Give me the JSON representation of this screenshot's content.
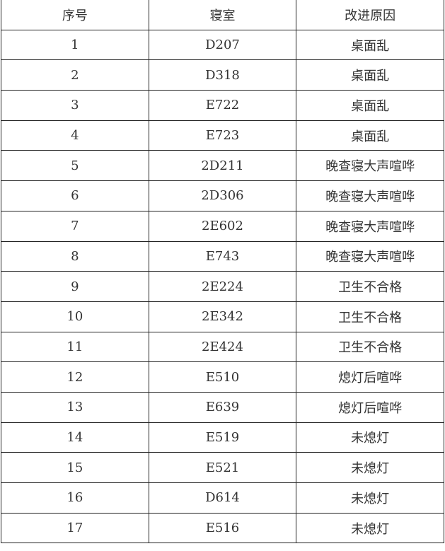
{
  "headers": [
    "序号",
    "寝室",
    "改进原因"
  ],
  "rows": [
    [
      "1",
      "D207",
      "桌面乱"
    ],
    [
      "2",
      "D318",
      "桌面乱"
    ],
    [
      "3",
      "E722",
      "桌面乱"
    ],
    [
      "4",
      "E723",
      "桌面乱"
    ],
    [
      "5",
      "2D211",
      "晚查寝大声喧哗"
    ],
    [
      "6",
      "2D306",
      "晚查寝大声喧哗"
    ],
    [
      "7",
      "2E602",
      "晚查寝大声喧哗"
    ],
    [
      "8",
      "E743",
      "晚查寝大声喧哗"
    ],
    [
      "9",
      "2E224",
      "卫生不合格"
    ],
    [
      "10",
      "2E342",
      "卫生不合格"
    ],
    [
      "11",
      "2E424",
      "卫生不合格"
    ],
    [
      "12",
      "E510",
      "熄灯后喧哗"
    ],
    [
      "13",
      "E639",
      "熄灯后喧哗"
    ],
    [
      "14",
      "E519",
      "未熄灯"
    ],
    [
      "15",
      "E521",
      "未熄灯"
    ],
    [
      "16",
      "D614",
      "未熄灯"
    ],
    [
      "17",
      "E516",
      "未熄灯"
    ]
  ]
}
